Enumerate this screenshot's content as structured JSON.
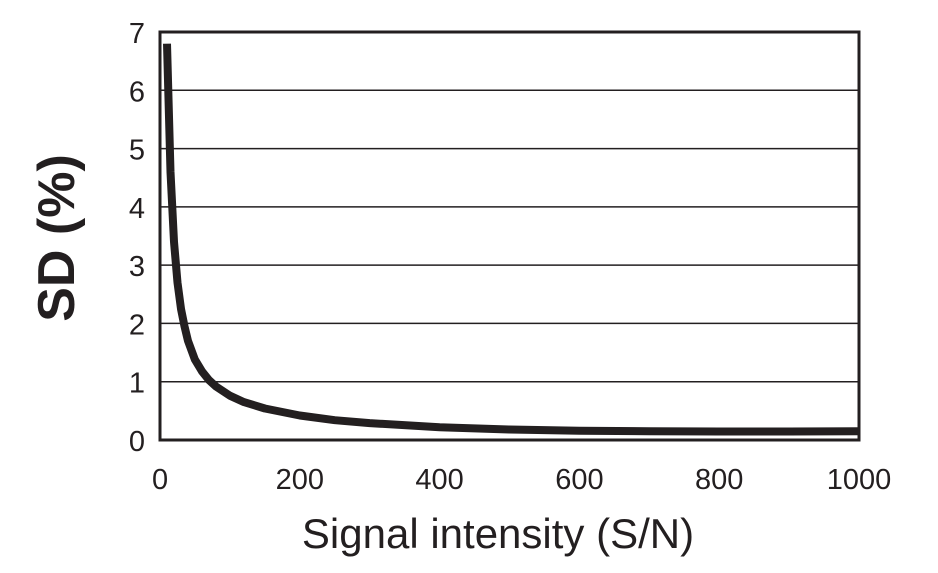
{
  "chart_data": {
    "type": "line",
    "title": "",
    "xlabel": "Signal intensity (S/N)",
    "ylabel": "SD (%)",
    "xlim": [
      0,
      1000
    ],
    "ylim": [
      0,
      7
    ],
    "x_ticks": [
      "0",
      "200",
      "400",
      "600",
      "800",
      "1000"
    ],
    "y_ticks": [
      "0",
      "1",
      "2",
      "3",
      "4",
      "5",
      "6",
      "7"
    ],
    "grid": "horizontal",
    "legend": "none",
    "colors": {
      "line": "#231f20",
      "grid": "#231f20",
      "text": "#231f20"
    },
    "series": [
      {
        "name": "SD",
        "x": [
          10,
          15,
          20,
          25,
          30,
          35,
          40,
          50,
          60,
          70,
          80,
          100,
          120,
          150,
          200,
          250,
          300,
          400,
          500,
          600,
          700,
          800,
          900,
          1000
        ],
        "y": [
          6.8,
          4.6,
          3.4,
          2.7,
          2.25,
          1.95,
          1.7,
          1.38,
          1.18,
          1.03,
          0.92,
          0.76,
          0.65,
          0.54,
          0.42,
          0.34,
          0.29,
          0.22,
          0.18,
          0.16,
          0.15,
          0.145,
          0.145,
          0.15
        ]
      }
    ]
  }
}
